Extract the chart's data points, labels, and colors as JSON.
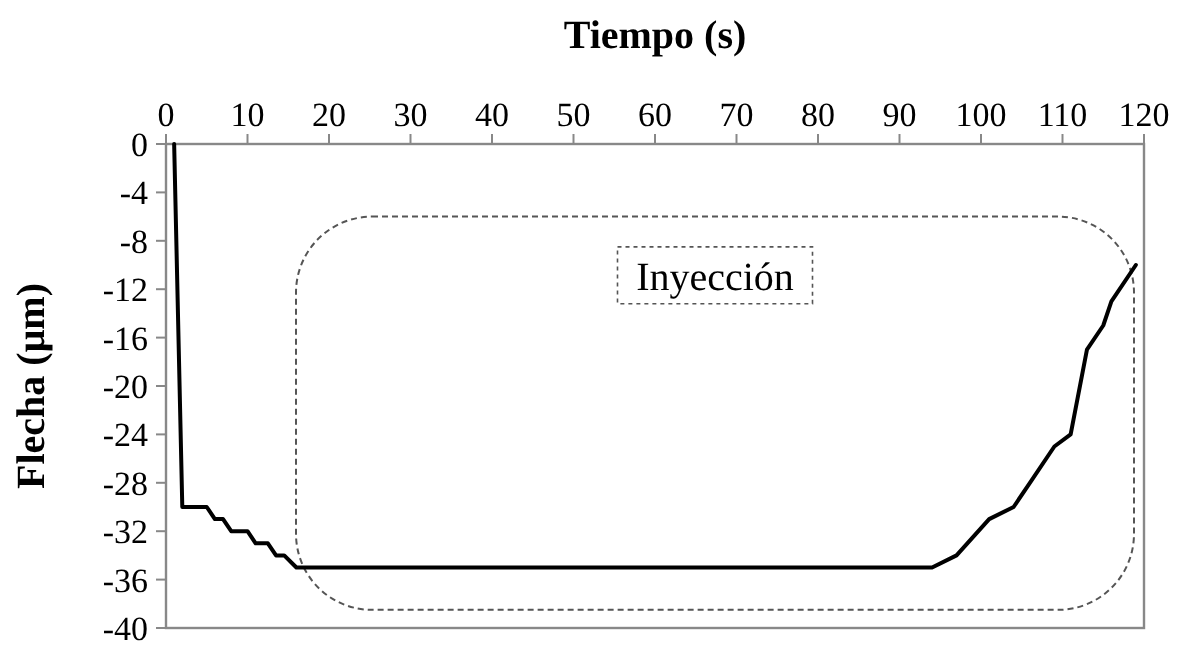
{
  "chart_data": {
    "type": "line",
    "xlabel": "Tiempo (s)",
    "ylabel": "Flecha (μm)",
    "x": [
      1,
      2,
      5,
      6,
      7,
      8,
      10,
      11,
      12.5,
      13.5,
      14.5,
      16,
      94,
      97,
      101,
      104,
      106,
      109,
      111,
      113,
      115,
      116,
      119
    ],
    "series": [
      {
        "color": "#000000",
        "values": [
          0,
          -30,
          -30,
          -31,
          -31,
          -32,
          -32,
          -33,
          -33,
          -34,
          -34,
          -35,
          -35,
          -34,
          -31,
          -30,
          -28,
          -25,
          -24,
          -17,
          -15,
          -13,
          -10
        ]
      }
    ],
    "xlim": [
      0,
      120
    ],
    "xticks": [
      0,
      10,
      20,
      30,
      40,
      50,
      60,
      70,
      80,
      90,
      100,
      110,
      120
    ],
    "ylim": [
      -40,
      0
    ],
    "yticks": [
      0,
      -4,
      -8,
      -12,
      -16,
      -20,
      -24,
      -28,
      -32,
      -36,
      -40
    ],
    "annotations": [
      "Inyección"
    ],
    "grid": false,
    "line_style": "solid"
  }
}
